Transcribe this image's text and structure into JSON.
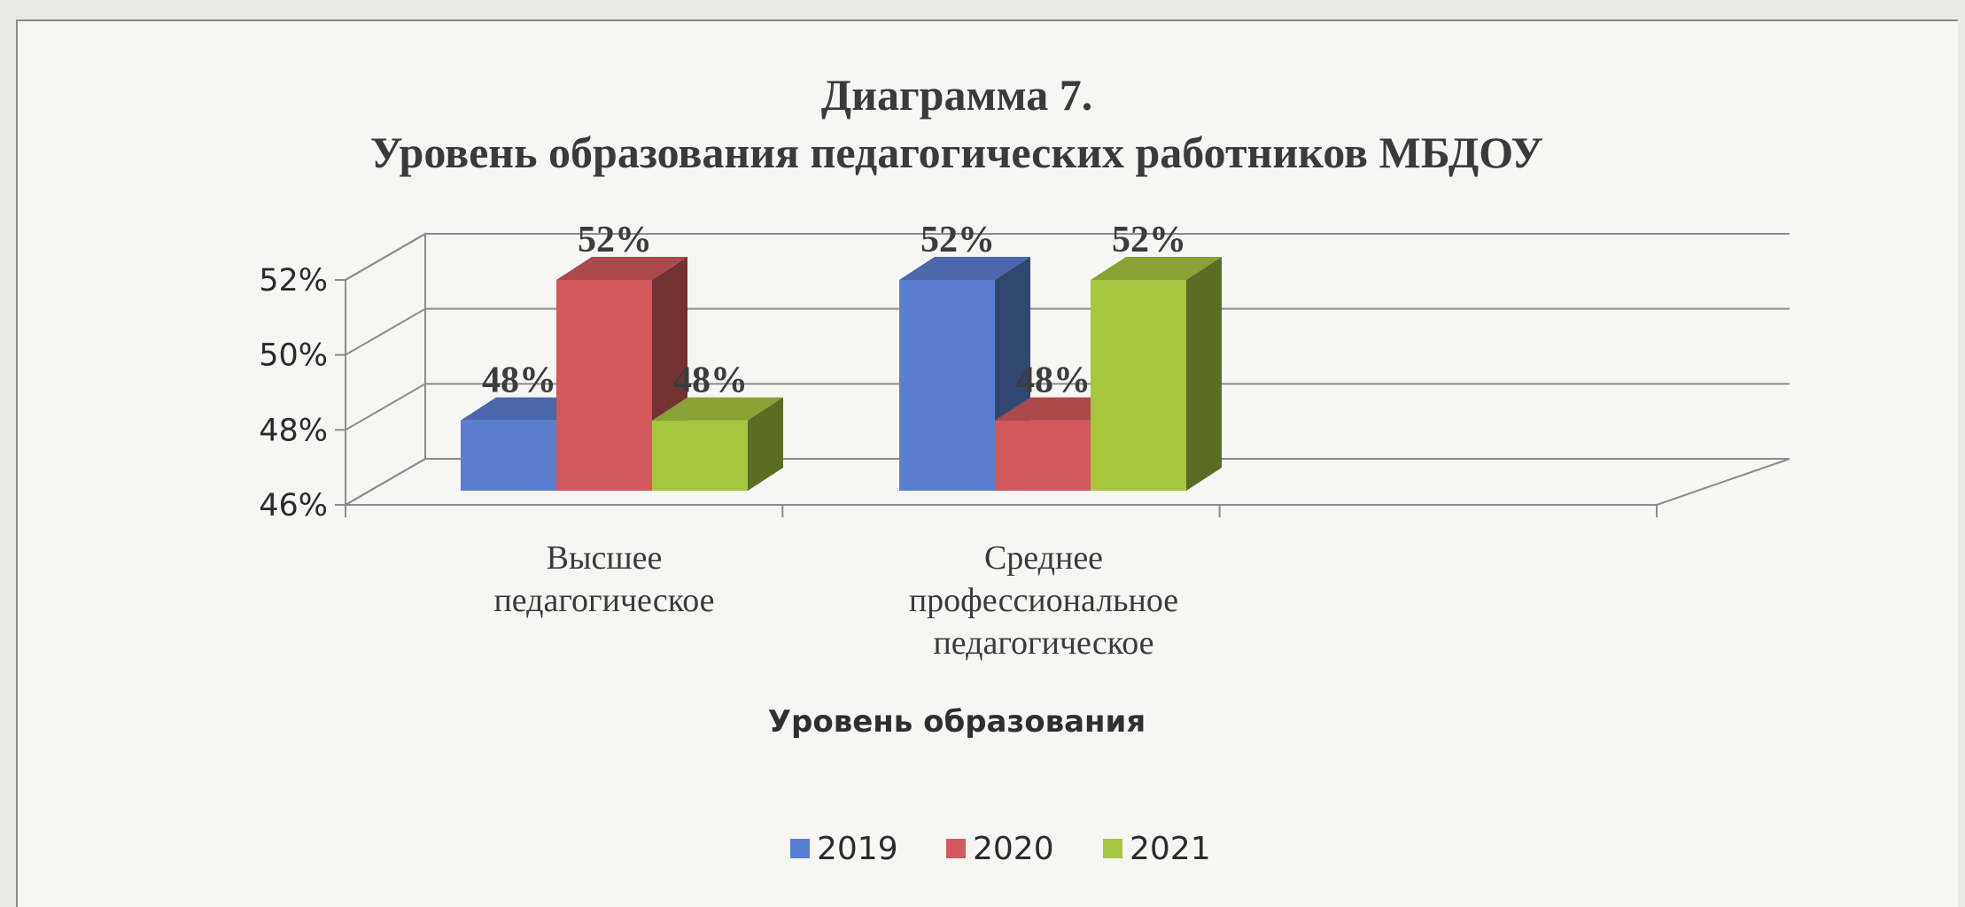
{
  "chart_data": {
    "type": "bar",
    "title_line1": "Диаграмма 7.",
    "title_line2": "Уровень образования педагогических работников МБДОУ",
    "xlabel": "Уровень образования",
    "ylabel": "",
    "ylim": [
      46,
      52
    ],
    "y_ticks": [
      "46%",
      "48%",
      "50%",
      "52%"
    ],
    "y_tick_values": [
      46,
      48,
      50,
      52
    ],
    "categories": [
      [
        "Высшее",
        "педагогическое"
      ],
      [
        "Среднее",
        "профессиональное",
        "педагогическое"
      ]
    ],
    "series": [
      {
        "name": "2019",
        "values": [
          48,
          52
        ],
        "labels": [
          "48%",
          "52%"
        ],
        "color": "#5a7fd0"
      },
      {
        "name": "2020",
        "values": [
          52,
          48
        ],
        "labels": [
          "52%",
          "48%"
        ],
        "color": "#d2595c"
      },
      {
        "name": "2021",
        "values": [
          48,
          52
        ],
        "labels": [
          "48%",
          "52%"
        ],
        "color": "#a6c640"
      }
    ],
    "grid": true,
    "legend_position": "bottom",
    "style": "3d-clustered-column"
  }
}
